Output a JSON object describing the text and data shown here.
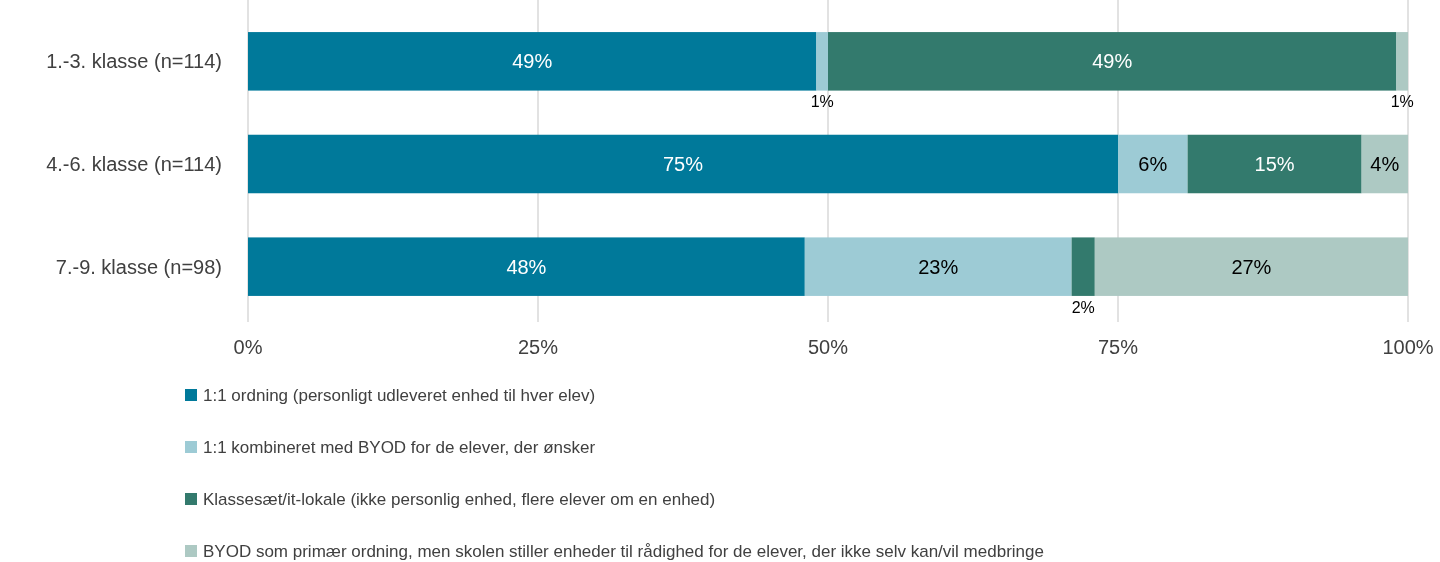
{
  "chart_data": {
    "type": "bar",
    "orientation": "horizontal",
    "stacked": true,
    "categories": [
      "1.-3. klasse (n=114)",
      "4.-6. klasse (n=114)",
      "7.-9. klasse (n=98)"
    ],
    "series": [
      {
        "name": "1:1 ordning (personligt udleveret enhed til hver elev)",
        "color": "#00799a",
        "values": [
          49,
          75,
          48
        ],
        "value_labels": [
          "49%",
          "75%",
          "48%"
        ]
      },
      {
        "name": "1:1 kombineret med BYOD for de elever, der ønsker",
        "color": "#9dcbd5",
        "values": [
          1,
          6,
          23
        ],
        "value_labels": [
          "1%",
          "6%",
          "23%"
        ]
      },
      {
        "name": "Klassesæt/it-lokale (ikke personlig enhed, flere elever om en enhed)",
        "color": "#337a6d",
        "values": [
          49,
          15,
          2
        ],
        "value_labels": [
          "49%",
          "15%",
          "2%"
        ]
      },
      {
        "name": "BYOD som primær ordning, men skolen stiller enheder til rådighed for de elever, der ikke selv kan/vil medbringe",
        "color": "#adc9c3",
        "values": [
          1,
          4,
          27
        ],
        "value_labels": [
          "1%",
          "4%",
          "27%"
        ]
      }
    ],
    "xlim": [
      0,
      100
    ],
    "xticks": [
      {
        "value": 0,
        "label": "0%"
      },
      {
        "value": 25,
        "label": "25%"
      },
      {
        "value": 50,
        "label": "50%"
      },
      {
        "value": 75,
        "label": "75%"
      },
      {
        "value": 100,
        "label": "100%"
      }
    ],
    "grid": "x",
    "legend": "bottom"
  }
}
